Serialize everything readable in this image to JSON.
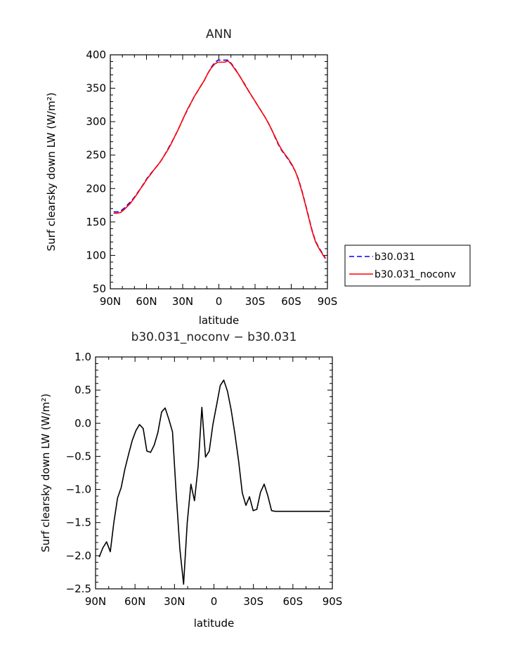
{
  "chart_data": [
    {
      "type": "line",
      "title": "ANN",
      "xlabel": "latitude",
      "ylabel": "Surf clearsky down LW (W/m²)",
      "xlim": [
        -90,
        90
      ],
      "ylim": [
        50,
        400
      ],
      "xticks": [
        -90,
        -60,
        -30,
        0,
        30,
        60,
        90
      ],
      "xtick_labels": [
        "90N",
        "60N",
        "30N",
        "0",
        "30S",
        "60S",
        "90S"
      ],
      "yticks": [
        50,
        100,
        150,
        200,
        250,
        300,
        350,
        400
      ],
      "ytick_labels": [
        "50",
        "100",
        "150",
        "200",
        "250",
        "300",
        "350",
        "400"
      ],
      "legend": "right",
      "x": [
        -87.2,
        -84.4,
        -81.6,
        -78.8,
        -76.1,
        -73.3,
        -70.5,
        -67.7,
        -64.9,
        -62.1,
        -59.3,
        -56.6,
        -53.8,
        -51.0,
        -48.2,
        -45.4,
        -42.6,
        -39.8,
        -37.1,
        -34.3,
        -31.5,
        -28.7,
        -25.9,
        -23.1,
        -20.3,
        -17.5,
        -14.8,
        -12.0,
        -9.2,
        -6.4,
        -3.6,
        -0.8,
        2.0,
        4.8,
        7.5,
        10.3,
        13.1,
        15.9,
        18.7,
        21.5,
        24.3,
        27.0,
        29.8,
        32.6,
        35.4,
        38.2,
        41.0,
        43.8,
        46.5,
        49.3,
        52.1,
        54.9,
        57.7,
        60.5,
        63.3,
        66.0,
        68.8,
        71.6,
        74.4,
        77.2,
        80.0,
        82.8,
        85.5,
        88.3
      ],
      "series": [
        {
          "name": "b30.031",
          "color": "#0000ff",
          "dash": "dashed",
          "values": [
            165,
            165,
            166,
            170,
            175,
            180,
            186,
            193,
            200,
            208,
            216,
            222,
            228,
            234,
            241,
            249,
            258,
            267,
            276,
            286,
            297,
            308,
            318,
            328,
            338,
            346,
            354,
            362,
            372,
            381,
            388,
            392,
            392,
            392,
            392,
            387,
            380,
            372,
            364,
            356,
            347,
            339,
            331,
            323,
            315,
            307,
            298,
            288,
            277,
            266,
            257,
            250,
            243,
            235,
            226,
            214,
            197,
            178,
            158,
            138,
            122,
            112,
            104,
            96
          ]
        },
        {
          "name": "b30.031_noconv",
          "color": "#ff0000",
          "dash": "solid",
          "values": [
            163,
            163,
            164,
            168,
            173,
            178,
            185,
            192,
            200,
            207,
            215,
            221,
            228,
            234,
            241,
            249,
            257,
            266,
            276,
            286,
            297,
            308,
            319,
            328,
            338,
            346,
            354,
            362,
            372,
            380,
            386,
            389,
            389,
            389,
            391,
            386,
            379,
            372,
            364,
            355,
            347,
            339,
            331,
            323,
            315,
            307,
            298,
            288,
            278,
            267,
            258,
            251,
            244,
            236,
            226,
            213,
            196,
            177,
            157,
            137,
            121,
            111,
            103,
            95
          ]
        }
      ]
    },
    {
      "type": "line",
      "title": "b30.031_noconv − b30.031",
      "xlabel": "latitude",
      "ylabel": "Surf clearsky down LW (W/m²)",
      "xlim": [
        -90,
        90
      ],
      "ylim": [
        -2.5,
        1.0
      ],
      "xticks": [
        -90,
        -60,
        -30,
        0,
        30,
        60,
        90
      ],
      "xtick_labels": [
        "90N",
        "60N",
        "30N",
        "0",
        "30S",
        "60S",
        "90S"
      ],
      "yticks": [
        -2.5,
        -2.0,
        -1.5,
        -1.0,
        -0.5,
        0.0,
        0.5,
        1.0
      ],
      "ytick_labels": [
        "−2.5",
        "−2.0",
        "−1.5",
        "−1.0",
        "−0.5",
        "0.0",
        "0.5",
        "1.0"
      ],
      "x": [
        -87.2,
        -84.4,
        -81.6,
        -78.8,
        -76.1,
        -73.3,
        -70.5,
        -67.7,
        -64.9,
        -62.1,
        -59.3,
        -56.6,
        -53.8,
        -51.0,
        -48.2,
        -45.4,
        -42.6,
        -39.8,
        -37.1,
        -34.3,
        -31.5,
        -28.7,
        -25.9,
        -23.1,
        -20.3,
        -17.5,
        -14.8,
        -12.0,
        -9.2,
        -6.4,
        -3.6,
        -0.8,
        2.0,
        4.8,
        7.5,
        10.3,
        13.1,
        15.9,
        18.7,
        21.5,
        24.3,
        27.0,
        29.8,
        32.6,
        35.4,
        38.2,
        41.0,
        43.8,
        46.5,
        49.3,
        52.1,
        54.9,
        57.7,
        60.5,
        63.3,
        66.0,
        68.8,
        71.6,
        74.4,
        77.2,
        80.0,
        82.8,
        85.5,
        88.3
      ],
      "series": [
        {
          "color": "#000000",
          "values": [
            -2.02,
            -1.88,
            -1.79,
            -1.94,
            -1.5,
            -1.13,
            -0.97,
            -0.69,
            -0.47,
            -0.26,
            -0.11,
            -0.02,
            -0.08,
            -0.42,
            -0.44,
            -0.33,
            -0.14,
            0.17,
            0.23,
            0.06,
            -0.13,
            -1.07,
            -1.9,
            -2.43,
            -1.5,
            -0.92,
            -1.17,
            -0.65,
            0.24,
            -0.51,
            -0.42,
            -0.02,
            0.27,
            0.57,
            0.65,
            0.48,
            0.2,
            -0.16,
            -0.56,
            -1.05,
            -1.24,
            -1.11,
            -1.32,
            -1.3,
            -1.04,
            -0.92,
            -1.1,
            -1.32,
            -1.33,
            -1.33,
            -1.33,
            -1.33,
            -1.33,
            -1.33,
            -1.33,
            -1.33,
            -1.33,
            -1.33,
            -1.33,
            -1.33,
            -1.33,
            -1.33,
            -1.33,
            -1.33
          ]
        }
      ]
    }
  ]
}
